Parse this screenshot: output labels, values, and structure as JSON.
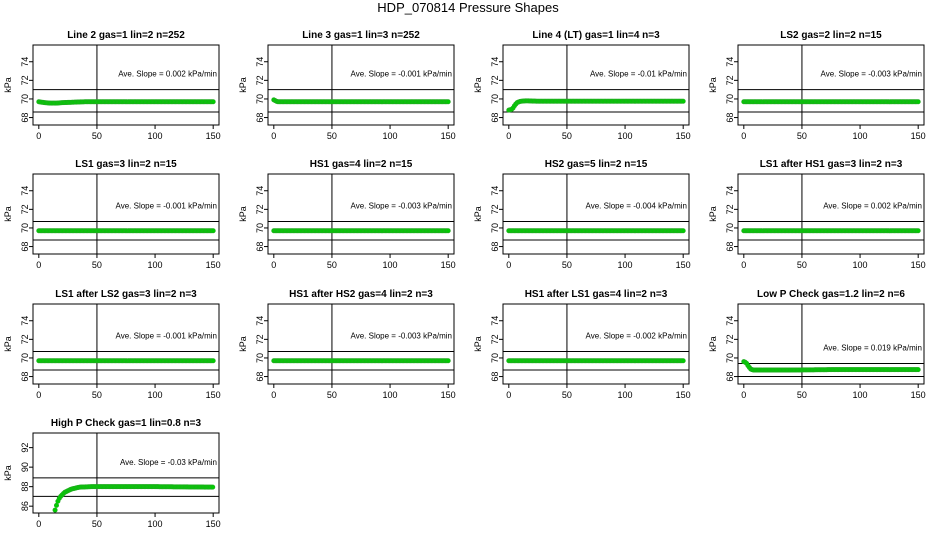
{
  "page_title": "HDP_070814  Pressure Shapes",
  "colors": {
    "points": "#00cc00",
    "point_stroke": "#22aa22",
    "axes": "#000000",
    "background": "#ffffff"
  },
  "chart_data": [
    {
      "type": "scatter",
      "title": "Line 2 gas=1 lin=2 n=252",
      "ylabel": "kPa",
      "ylim": [
        67.2,
        75.8
      ],
      "yticks": [
        68,
        70,
        72,
        74
      ],
      "xlim": [
        -5,
        155
      ],
      "xticks": [
        0,
        50,
        100,
        150
      ],
      "hlines": [
        71.0,
        68.6
      ],
      "vline": 50,
      "annotation": "Ave. Slope =  0.002  kPa/min",
      "series": [
        {
          "points": [
            [
              0,
              69.7
            ],
            [
              5,
              69.6
            ],
            [
              10,
              69.55
            ],
            [
              15,
              69.55
            ],
            [
              20,
              69.6
            ],
            [
              30,
              69.65
            ],
            [
              40,
              69.7
            ],
            [
              150,
              69.7
            ]
          ]
        }
      ]
    },
    {
      "type": "scatter",
      "title": "Line 3 gas=1 lin=3 n=252",
      "ylabel": "kPa",
      "ylim": [
        67.2,
        75.8
      ],
      "yticks": [
        68,
        70,
        72,
        74
      ],
      "xlim": [
        -5,
        155
      ],
      "xticks": [
        0,
        50,
        100,
        150
      ],
      "hlines": [
        71.0,
        68.6
      ],
      "vline": 50,
      "annotation": "Ave. Slope =  -0.001  kPa/min",
      "series": [
        {
          "points": [
            [
              0,
              69.9
            ],
            [
              3,
              69.7
            ],
            [
              150,
              69.7
            ]
          ]
        }
      ]
    },
    {
      "type": "scatter",
      "title": "Line 4 (LT) gas=1 lin=4 n=3",
      "ylabel": "kPa",
      "ylim": [
        67.2,
        75.8
      ],
      "yticks": [
        68,
        70,
        72,
        74
      ],
      "xlim": [
        -5,
        155
      ],
      "xticks": [
        0,
        50,
        100,
        150
      ],
      "hlines": [
        71.0,
        68.6
      ],
      "vline": 50,
      "annotation": "Ave. Slope =  -0.01  kPa/min",
      "series": [
        {
          "points": [
            [
              0,
              68.8
            ],
            [
              3,
              68.9
            ],
            [
              5,
              69.3
            ],
            [
              7,
              69.6
            ],
            [
              10,
              69.75
            ],
            [
              15,
              69.8
            ],
            [
              25,
              69.75
            ],
            [
              150,
              69.75
            ]
          ]
        }
      ]
    },
    {
      "type": "scatter",
      "title": "LS2 gas=2 lin=2 n=15",
      "ylabel": "kPa",
      "ylim": [
        67.2,
        75.8
      ],
      "yticks": [
        68,
        70,
        72,
        74
      ],
      "xlim": [
        -5,
        155
      ],
      "xticks": [
        0,
        50,
        100,
        150
      ],
      "hlines": [
        71.0,
        68.6
      ],
      "vline": 50,
      "annotation": "Ave. Slope =  -0.003  kPa/min",
      "series": [
        {
          "points": [
            [
              0,
              69.7
            ],
            [
              150,
              69.7
            ]
          ]
        }
      ]
    },
    {
      "type": "scatter",
      "title": "LS1 gas=3 lin=2 n=15",
      "ylabel": "kPa",
      "ylim": [
        67.2,
        75.8
      ],
      "yticks": [
        68,
        70,
        72,
        74
      ],
      "xlim": [
        -5,
        155
      ],
      "xticks": [
        0,
        50,
        100,
        150
      ],
      "hlines": [
        70.7,
        68.7
      ],
      "vline": 50,
      "annotation": "Ave. Slope =  -0.001  kPa/min",
      "series": [
        {
          "points": [
            [
              0,
              69.7
            ],
            [
              150,
              69.7
            ]
          ]
        }
      ]
    },
    {
      "type": "scatter",
      "title": "HS1 gas=4 lin=2 n=15",
      "ylabel": "kPa",
      "ylim": [
        67.2,
        75.8
      ],
      "yticks": [
        68,
        70,
        72,
        74
      ],
      "xlim": [
        -5,
        155
      ],
      "xticks": [
        0,
        50,
        100,
        150
      ],
      "hlines": [
        70.7,
        68.7
      ],
      "vline": 50,
      "annotation": "Ave. Slope =  -0.003  kPa/min",
      "series": [
        {
          "points": [
            [
              0,
              69.7
            ],
            [
              150,
              69.7
            ]
          ]
        }
      ]
    },
    {
      "type": "scatter",
      "title": "HS2 gas=5 lin=2 n=15",
      "ylabel": "kPa",
      "ylim": [
        67.2,
        75.8
      ],
      "yticks": [
        68,
        70,
        72,
        74
      ],
      "xlim": [
        -5,
        155
      ],
      "xticks": [
        0,
        50,
        100,
        150
      ],
      "hlines": [
        70.7,
        68.7
      ],
      "vline": 50,
      "annotation": "Ave. Slope =  -0.004  kPa/min",
      "series": [
        {
          "points": [
            [
              0,
              69.7
            ],
            [
              150,
              69.7
            ]
          ]
        }
      ]
    },
    {
      "type": "scatter",
      "title": "LS1 after HS1 gas=3 lin=2 n=3",
      "ylabel": "kPa",
      "ylim": [
        67.2,
        75.8
      ],
      "yticks": [
        68,
        70,
        72,
        74
      ],
      "xlim": [
        -5,
        155
      ],
      "xticks": [
        0,
        50,
        100,
        150
      ],
      "hlines": [
        70.7,
        68.7
      ],
      "vline": 50,
      "annotation": "Ave. Slope =  0.002  kPa/min",
      "series": [
        {
          "points": [
            [
              0,
              69.7
            ],
            [
              150,
              69.7
            ]
          ]
        }
      ]
    },
    {
      "type": "scatter",
      "title": "LS1 after LS2 gas=3 lin=2 n=3",
      "ylabel": "kPa",
      "ylim": [
        67.2,
        75.8
      ],
      "yticks": [
        68,
        70,
        72,
        74
      ],
      "xlim": [
        -5,
        155
      ],
      "xticks": [
        0,
        50,
        100,
        150
      ],
      "hlines": [
        70.7,
        68.7
      ],
      "vline": 50,
      "annotation": "Ave. Slope =  -0.001  kPa/min",
      "series": [
        {
          "points": [
            [
              0,
              69.7
            ],
            [
              150,
              69.7
            ]
          ]
        }
      ]
    },
    {
      "type": "scatter",
      "title": "HS1 after HS2 gas=4 lin=2 n=3",
      "ylabel": "kPa",
      "ylim": [
        67.2,
        75.8
      ],
      "yticks": [
        68,
        70,
        72,
        74
      ],
      "xlim": [
        -5,
        155
      ],
      "xticks": [
        0,
        50,
        100,
        150
      ],
      "hlines": [
        70.7,
        68.7
      ],
      "vline": 50,
      "annotation": "Ave. Slope =  -0.003  kPa/min",
      "series": [
        {
          "points": [
            [
              0,
              69.7
            ],
            [
              150,
              69.7
            ]
          ]
        }
      ]
    },
    {
      "type": "scatter",
      "title": "HS1 after LS1 gas=4 lin=2 n=3",
      "ylabel": "kPa",
      "ylim": [
        67.2,
        75.8
      ],
      "yticks": [
        68,
        70,
        72,
        74
      ],
      "xlim": [
        -5,
        155
      ],
      "xticks": [
        0,
        50,
        100,
        150
      ],
      "hlines": [
        70.7,
        68.7
      ],
      "vline": 50,
      "annotation": "Ave. Slope =  -0.002  kPa/min",
      "series": [
        {
          "points": [
            [
              0,
              69.7
            ],
            [
              150,
              69.7
            ]
          ]
        }
      ]
    },
    {
      "type": "scatter",
      "title": "Low P Check gas=1.2 lin=2 n=6",
      "ylabel": "kPa",
      "ylim": [
        67.2,
        75.8
      ],
      "yticks": [
        68,
        70,
        72,
        74
      ],
      "xlim": [
        -5,
        155
      ],
      "xticks": [
        0,
        50,
        100,
        150
      ],
      "hlines": [
        69.4,
        68.0
      ],
      "vline": 50,
      "annotation": "Ave. Slope =  0.019  kPa/min",
      "series": [
        {
          "points": [
            [
              0,
              69.6
            ],
            [
              2,
              69.5
            ],
            [
              4,
              69.1
            ],
            [
              6,
              68.8
            ],
            [
              8,
              68.7
            ],
            [
              20,
              68.7
            ],
            [
              40,
              68.7
            ],
            [
              80,
              68.75
            ],
            [
              150,
              68.75
            ]
          ]
        }
      ]
    },
    {
      "type": "scatter",
      "title": "High P Check gas=1 lin=0.8 n=3",
      "ylabel": "kPa",
      "ylim": [
        85.3,
        93.5
      ],
      "yticks": [
        86,
        88,
        90,
        92
      ],
      "xlim": [
        -5,
        155
      ],
      "xticks": [
        0,
        50,
        100,
        150
      ],
      "hlines": [
        88.9,
        87.0
      ],
      "vline": 50,
      "annotation": "Ave. Slope =  -0.03  kPa/min",
      "series": [
        {
          "points": [
            [
              14,
              85.6
            ],
            [
              16,
              86.4
            ],
            [
              18,
              86.9
            ],
            [
              22,
              87.4
            ],
            [
              28,
              87.75
            ],
            [
              35,
              87.95
            ],
            [
              45,
              88.0
            ],
            [
              100,
              88.0
            ],
            [
              150,
              87.95
            ]
          ]
        }
      ]
    }
  ]
}
